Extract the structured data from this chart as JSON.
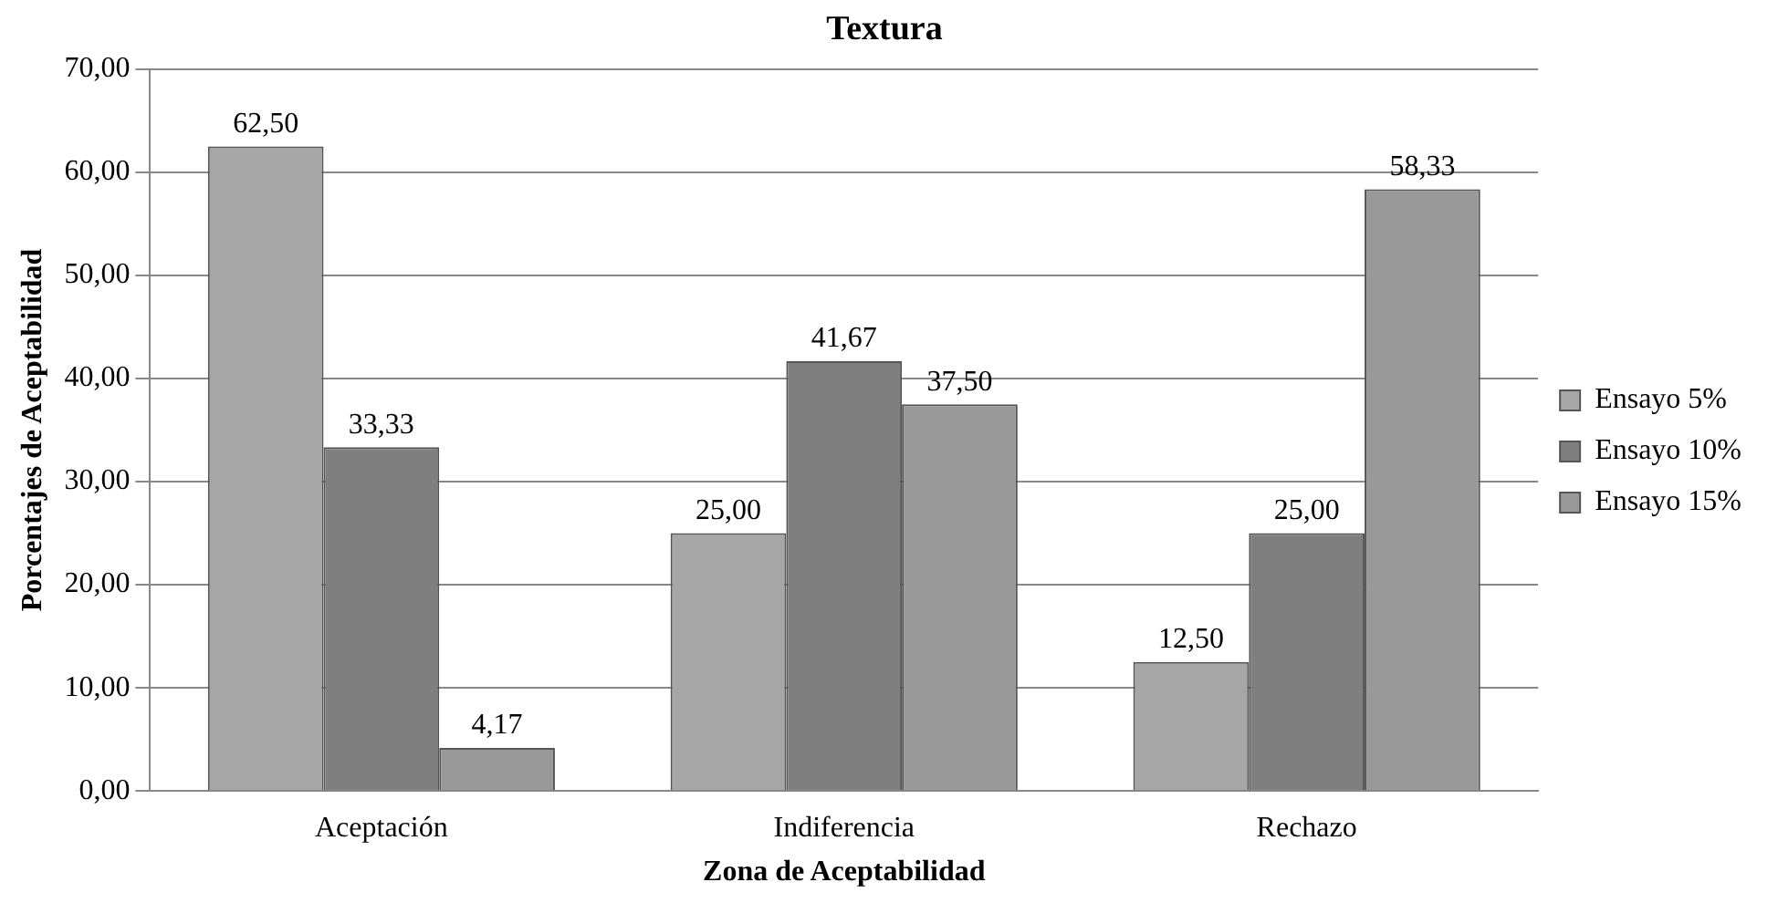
{
  "chart_data": {
    "type": "bar",
    "title": "Textura",
    "xlabel": "Zona de Aceptabilidad",
    "ylabel": "Porcentajes de Aceptabilidad",
    "categories": [
      "Aceptación",
      "Indiferencia",
      "Rechazo"
    ],
    "series": [
      {
        "name": "Ensayo 5%",
        "color": "#a6a6a6",
        "values": [
          62.5,
          25,
          12.5
        ],
        "value_labels": [
          "62,50",
          "25,00",
          "12,50"
        ]
      },
      {
        "name": "Ensayo 10%",
        "color": "#7f7f7f",
        "values": [
          33.33,
          41.67,
          25
        ],
        "value_labels": [
          "33,33",
          "41,67",
          "25,00"
        ]
      },
      {
        "name": "Ensayo 15%",
        "color": "#999999",
        "values": [
          4.17,
          37.5,
          58.33
        ],
        "value_labels": [
          "4,17",
          "37,50",
          "58,33"
        ]
      }
    ],
    "ylim": [
      0,
      70
    ],
    "yticks": [
      {
        "value": 0,
        "label": "0,00"
      },
      {
        "value": 10,
        "label": "10,00"
      },
      {
        "value": 20,
        "label": "20,00"
      },
      {
        "value": 30,
        "label": "30,00"
      },
      {
        "value": 40,
        "label": "40,00"
      },
      {
        "value": 50,
        "label": "50,00"
      },
      {
        "value": 60,
        "label": "60,00"
      },
      {
        "value": 70,
        "label": "70,00"
      }
    ],
    "grid": "y",
    "legend": "right"
  }
}
